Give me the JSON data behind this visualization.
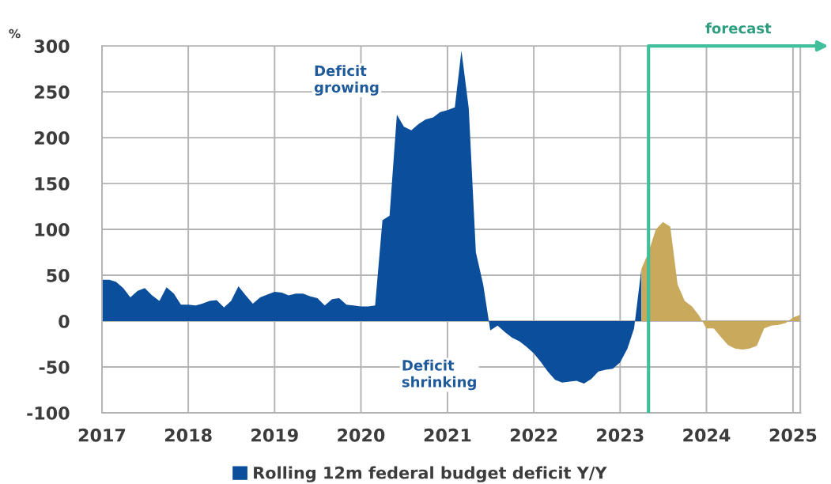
{
  "chart_data": {
    "type": "area",
    "ylabel": "%",
    "annotations": [
      "Deficit\ngrowing",
      "Deficit\nshrinking"
    ],
    "xlim": [
      "2017-01",
      "2025-02"
    ],
    "xticks": [
      "2017",
      "2018",
      "2019",
      "2020",
      "2021",
      "2022",
      "2023",
      "2024",
      "2025"
    ],
    "ylim": [
      -100,
      300
    ],
    "yticks": [
      -100,
      -50,
      0,
      50,
      100,
      150,
      200,
      250,
      300
    ],
    "grid": true,
    "legend": "bottom",
    "ref_lines": [
      {
        "axis": "x",
        "value": "2023-05",
        "label": "forecast",
        "color": "#3fbf9b"
      }
    ],
    "series": [
      {
        "name": "Rolling 12m federal budget deficit Y/Y",
        "color": "#0b4e9b",
        "x": [
          "2017-01",
          "2017-02",
          "2017-03",
          "2017-04",
          "2017-05",
          "2017-06",
          "2017-07",
          "2017-08",
          "2017-09",
          "2017-10",
          "2017-11",
          "2017-12",
          "2018-01",
          "2018-02",
          "2018-03",
          "2018-04",
          "2018-05",
          "2018-06",
          "2018-07",
          "2018-08",
          "2018-09",
          "2018-10",
          "2018-11",
          "2018-12",
          "2019-01",
          "2019-02",
          "2019-03",
          "2019-04",
          "2019-05",
          "2019-06",
          "2019-07",
          "2019-08",
          "2019-09",
          "2019-10",
          "2019-11",
          "2019-12",
          "2020-01",
          "2020-02",
          "2020-03",
          "2020-04",
          "2020-05",
          "2020-06",
          "2020-07",
          "2020-08",
          "2020-09",
          "2020-10",
          "2020-11",
          "2020-12",
          "2021-01",
          "2021-02",
          "2021-03",
          "2021-04",
          "2021-05",
          "2021-06",
          "2021-07",
          "2021-08",
          "2021-09",
          "2021-10",
          "2021-11",
          "2021-12",
          "2022-01",
          "2022-02",
          "2022-03",
          "2022-04",
          "2022-05",
          "2022-06",
          "2022-07",
          "2022-08",
          "2022-09",
          "2022-10",
          "2022-11",
          "2022-12",
          "2023-01",
          "2023-02",
          "2023-03",
          "2023-04"
        ],
        "values": [
          45,
          45,
          43,
          36,
          26,
          33,
          36,
          28,
          22,
          37,
          30,
          18,
          18,
          17,
          19,
          22,
          23,
          15,
          22,
          38,
          28,
          19,
          26,
          29,
          32,
          31,
          28,
          30,
          30,
          27,
          25,
          17,
          24,
          25,
          18,
          17,
          16,
          16,
          17,
          110,
          115,
          225,
          212,
          208,
          215,
          220,
          222,
          228,
          230,
          233,
          295,
          232,
          75,
          40,
          -10,
          -5,
          -12,
          -18,
          -22,
          -28,
          -35,
          -45,
          -55,
          -64,
          -67,
          -66,
          -65,
          -68,
          -63,
          -55,
          -53,
          -52,
          -45,
          -30,
          -8,
          57
        ]
      },
      {
        "color": "#c9a95b",
        "x": [
          "2023-04",
          "2023-05",
          "2023-06",
          "2023-07",
          "2023-08",
          "2023-09",
          "2023-10",
          "2023-11",
          "2023-12",
          "2024-01",
          "2024-02",
          "2024-03",
          "2024-04",
          "2024-05",
          "2024-06",
          "2024-07",
          "2024-08",
          "2024-09",
          "2024-10",
          "2024-11",
          "2024-12",
          "2025-01",
          "2025-02"
        ],
        "values": [
          57,
          75,
          100,
          108,
          103,
          40,
          22,
          16,
          6,
          -8,
          -8,
          -17,
          -26,
          -30,
          -31,
          -30,
          -27,
          -8,
          -5,
          -4,
          -2,
          4,
          7
        ]
      }
    ]
  }
}
